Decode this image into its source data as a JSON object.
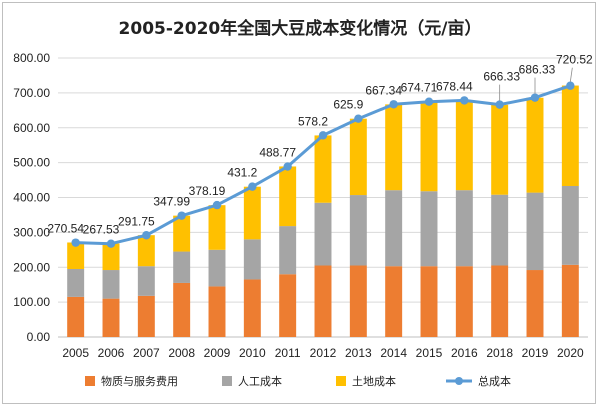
{
  "chart_data": {
    "type": "bar",
    "stacked": true,
    "title": "2005-2020年全国大豆成本变化情况（元/亩）",
    "categories": [
      "2005",
      "2006",
      "2007",
      "2008",
      "2009",
      "2010",
      "2011",
      "2012",
      "2013",
      "2014",
      "2015",
      "2016",
      "2018",
      "2019",
      "2020"
    ],
    "ylim": [
      0,
      800
    ],
    "yticks": [
      "0.00",
      "100.00",
      "200.00",
      "300.00",
      "400.00",
      "500.00",
      "600.00",
      "700.00",
      "800.00"
    ],
    "grid": true,
    "legend_position": "bottom",
    "series": [
      {
        "name": "物质与服务费用",
        "type": "bar",
        "color": "#ED7D31",
        "values": [
          115,
          110,
          118,
          155,
          145,
          165,
          180,
          205,
          205,
          203,
          203,
          203,
          205,
          192,
          207
        ]
      },
      {
        "name": "人工成本",
        "type": "bar",
        "color": "#A5A5A5",
        "values": [
          80,
          82,
          85,
          90,
          105,
          115,
          138,
          180,
          202,
          218,
          215,
          218,
          203,
          222,
          226
        ]
      },
      {
        "name": "土地成本",
        "type": "bar",
        "color": "#FFC000",
        "values": [
          76,
          76,
          89,
          103,
          128,
          151,
          171,
          193,
          219,
          246,
          257,
          257,
          258,
          272,
          288
        ]
      },
      {
        "name": "总成本",
        "type": "line",
        "color": "#5B9BD5",
        "values": [
          270.54,
          267.53,
          291.75,
          347.99,
          378.19,
          431.2,
          488.77,
          578.2,
          625.9,
          667.34,
          674.71,
          678.44,
          666.33,
          686.33,
          720.52
        ],
        "labels": [
          "270.54",
          "267.53",
          "291.75",
          "347.99",
          "378.19",
          "431.2",
          "488.77",
          "578.2",
          "625.9",
          "667.34",
          "674.71",
          "678.44",
          "666.33",
          "686.33",
          "720.52"
        ]
      }
    ]
  }
}
